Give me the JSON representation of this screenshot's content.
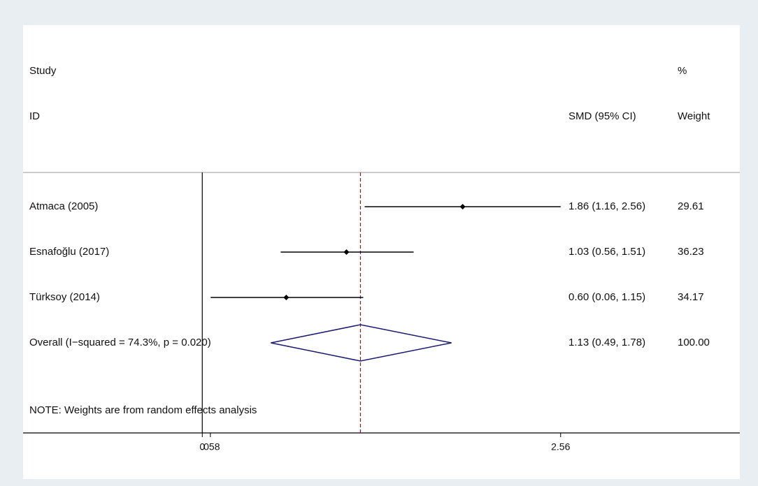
{
  "chart_data": {
    "type": "forest",
    "header": {
      "study": "Study",
      "id": "ID",
      "effect": "SMD (95% CI)",
      "pct": "%",
      "weight": "Weight"
    },
    "studies": [
      {
        "name": "Atmaca (2005)",
        "estimate": 1.86,
        "ci": [
          1.16,
          2.56
        ],
        "label": "1.86 (1.16, 2.56)",
        "weight": "29.61"
      },
      {
        "name": "Esnafoğlu (2017)",
        "estimate": 1.03,
        "ci": [
          0.56,
          1.51
        ],
        "label": "1.03 (0.56, 1.51)",
        "weight": "36.23"
      },
      {
        "name": "Türksoy (2014)",
        "estimate": 0.6,
        "ci": [
          0.06,
          1.15
        ],
        "label": "0.60 (0.06, 1.15)",
        "weight": "34.17"
      }
    ],
    "overall": {
      "name": "Overall  (I−squared = 74.3%, p = 0.020)",
      "estimate": 1.13,
      "ci": [
        0.49,
        1.78
      ],
      "label": "1.13 (0.49, 1.78)",
      "weight": "100.00"
    },
    "note": "NOTE: Weights are from random effects analysis",
    "null_line": 0,
    "xlim": [
      -1.28,
      3.84
    ],
    "xticks": [
      0,
      {
        "value": 0.058,
        "label": ".058"
      },
      2.56
    ],
    "colors": {
      "marker": "#000000",
      "ci": "#000000",
      "diamond": "#1a1a6e",
      "overall_line": "#8b1a1a"
    }
  }
}
